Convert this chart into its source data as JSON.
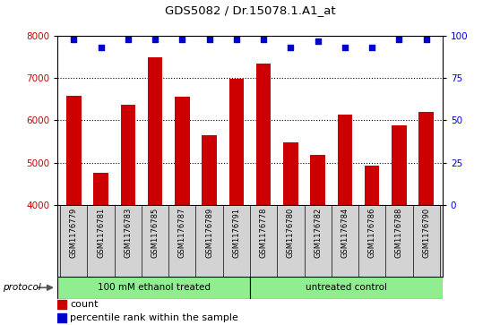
{
  "title": "GDS5082 / Dr.15078.1.A1_at",
  "samples": [
    "GSM1176779",
    "GSM1176781",
    "GSM1176783",
    "GSM1176785",
    "GSM1176787",
    "GSM1176789",
    "GSM1176791",
    "GSM1176778",
    "GSM1176780",
    "GSM1176782",
    "GSM1176784",
    "GSM1176786",
    "GSM1176788",
    "GSM1176790"
  ],
  "counts": [
    6570,
    4760,
    6370,
    7490,
    6560,
    5650,
    6990,
    7340,
    5480,
    5170,
    6140,
    4920,
    5870,
    6200
  ],
  "percentiles": [
    98,
    93,
    98,
    98,
    98,
    98,
    98,
    98,
    93,
    97,
    93,
    93,
    98,
    98
  ],
  "group1_label": "100 mM ethanol treated",
  "group2_label": "untreated control",
  "group1_count": 7,
  "group2_count": 7,
  "ylim_left": [
    4000,
    8000
  ],
  "ylim_right": [
    0,
    100
  ],
  "yticks_left": [
    4000,
    5000,
    6000,
    7000,
    8000
  ],
  "yticks_right": [
    0,
    25,
    50,
    75,
    100
  ],
  "bar_color": "#cc0000",
  "dot_color": "#0000cc",
  "group_color": "#90ee90",
  "left_tick_color": "#cc0000",
  "right_tick_color": "#0000cc",
  "bg_color": "#d3d3d3",
  "legend_count_color": "#cc0000",
  "legend_pct_color": "#0000cc",
  "protocol_label": "protocol",
  "legend_count": "count",
  "legend_pct": "percentile rank within the sample"
}
